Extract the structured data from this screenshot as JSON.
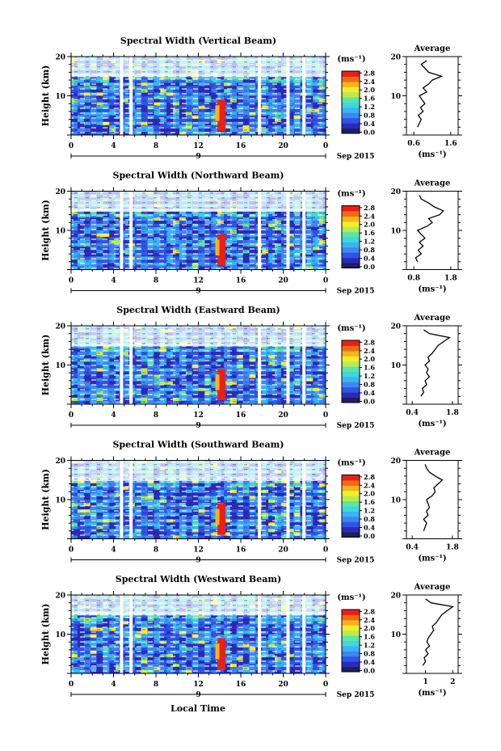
{
  "figure": {
    "xlabel": "Local Time",
    "date_label": "Sep 2015",
    "date_day": "9",
    "avg_title": "Average",
    "unit_label": "(ms⁻¹)",
    "ylabel": "Height (km)"
  },
  "colormap": [
    "#1e1f5e",
    "#2b2bb8",
    "#2f55e6",
    "#3f86f0",
    "#3ab4f2",
    "#3fd6e0",
    "#5fe3a8",
    "#b6ec4e",
    "#f4ec2c",
    "#f6b41c",
    "#f36a12",
    "#e8201a"
  ],
  "chart_data": [
    {
      "type": "heatmap",
      "title": "Spectral Width (Vertical Beam)",
      "x_ticks": [
        "0",
        "4",
        "8",
        "12",
        "16",
        "20",
        "0"
      ],
      "xlim": [
        0,
        24
      ],
      "y_ticks": [
        "20",
        "10"
      ],
      "ylim": [
        0,
        20
      ],
      "colorbar_ticks": [
        "2.8",
        "2.4",
        "2.0",
        "1.6",
        "1.2",
        "0.8",
        "0.4",
        "0.0"
      ],
      "colorbar_range": [
        0,
        2.8
      ],
      "average_profile": {
        "x_ticks": [
          "0.6",
          "1.6"
        ],
        "xlim": [
          0.4,
          1.8
        ],
        "y_ticks": [
          "20",
          "10"
        ],
        "ylim": [
          0,
          20
        ],
        "height_km": [
          2,
          3,
          4,
          5,
          6,
          7,
          8,
          9,
          10,
          11,
          12,
          13,
          14,
          15,
          16,
          17,
          18,
          19
        ],
        "width_ms": [
          0.7,
          0.75,
          0.8,
          0.72,
          0.85,
          0.78,
          0.9,
          0.82,
          0.75,
          0.95,
          0.85,
          1.0,
          1.1,
          1.35,
          1.0,
          0.9,
          0.8,
          0.95
        ]
      }
    },
    {
      "type": "heatmap",
      "title": "Spectral Width (Northward Beam)",
      "x_ticks": [
        "0",
        "4",
        "8",
        "12",
        "16",
        "20",
        "0"
      ],
      "xlim": [
        0,
        24
      ],
      "y_ticks": [
        "20",
        "10"
      ],
      "ylim": [
        0,
        20
      ],
      "colorbar_ticks": [
        "2.8",
        "2.4",
        "2.0",
        "1.6",
        "1.2",
        "0.8",
        "0.4",
        "0.0"
      ],
      "colorbar_range": [
        0,
        2.8
      ],
      "average_profile": {
        "x_ticks": [
          "0.8",
          "1.8"
        ],
        "xlim": [
          0.6,
          2.0
        ],
        "y_ticks": [
          "20",
          "10"
        ],
        "ylim": [
          0,
          20
        ],
        "height_km": [
          2,
          3,
          4,
          5,
          6,
          7,
          8,
          9,
          10,
          11,
          12,
          13,
          14,
          15,
          16,
          17,
          18,
          19
        ],
        "width_ms": [
          0.9,
          0.85,
          1.0,
          0.92,
          1.05,
          0.95,
          1.1,
          1.0,
          0.9,
          1.15,
          1.3,
          1.2,
          1.5,
          1.6,
          1.35,
          1.2,
          1.0,
          0.95
        ]
      }
    },
    {
      "type": "heatmap",
      "title": "Spectral Width (Eastward Beam)",
      "x_ticks": [
        "0",
        "4",
        "8",
        "12",
        "16",
        "20",
        "0"
      ],
      "xlim": [
        0,
        24
      ],
      "y_ticks": [
        "20",
        "10"
      ],
      "ylim": [
        0,
        20
      ],
      "colorbar_ticks": [
        "2.8",
        "2.4",
        "2.0",
        "1.6",
        "1.2",
        "0.8",
        "0.4",
        "0.0"
      ],
      "colorbar_range": [
        0,
        2.8
      ],
      "average_profile": {
        "x_ticks": [
          "0.4",
          "1.8"
        ],
        "xlim": [
          0.2,
          2.0
        ],
        "y_ticks": [
          "20",
          "10"
        ],
        "ylim": [
          0,
          20
        ],
        "height_km": [
          2,
          3,
          4,
          5,
          6,
          7,
          8,
          9,
          10,
          11,
          12,
          13,
          14,
          15,
          16,
          17,
          18,
          19
        ],
        "width_ms": [
          0.7,
          0.8,
          0.75,
          0.9,
          0.85,
          1.0,
          0.9,
          0.95,
          0.85,
          1.0,
          0.95,
          1.1,
          1.2,
          1.3,
          1.5,
          1.7,
          1.0,
          0.8
        ]
      }
    },
    {
      "type": "heatmap",
      "title": "Spectral Width (Southward Beam)",
      "x_ticks": [
        "0",
        "4",
        "8",
        "12",
        "16",
        "20",
        "0"
      ],
      "xlim": [
        0,
        24
      ],
      "y_ticks": [
        "20",
        "10"
      ],
      "ylim": [
        0,
        20
      ],
      "colorbar_ticks": [
        "2.8",
        "2.4",
        "2.0",
        "1.6",
        "1.2",
        "0.8",
        "0.4",
        "0.0"
      ],
      "colorbar_range": [
        0,
        2.8
      ],
      "average_profile": {
        "x_ticks": [
          "0.4",
          "1.8"
        ],
        "xlim": [
          0.2,
          2.0
        ],
        "y_ticks": [
          "20",
          "10"
        ],
        "ylim": [
          0,
          20
        ],
        "height_km": [
          2,
          3,
          4,
          5,
          6,
          7,
          8,
          9,
          10,
          11,
          12,
          13,
          14,
          15,
          16,
          17,
          18,
          19
        ],
        "width_ms": [
          0.8,
          0.85,
          0.9,
          0.8,
          0.95,
          0.9,
          1.0,
          0.95,
          0.9,
          1.1,
          1.2,
          1.15,
          1.3,
          1.45,
          1.2,
          1.0,
          0.9,
          0.85
        ]
      }
    },
    {
      "type": "heatmap",
      "title": "Spectral Width (Westward Beam)",
      "x_ticks": [
        "0",
        "4",
        "8",
        "12",
        "16",
        "20",
        "0"
      ],
      "xlim": [
        0,
        24
      ],
      "y_ticks": [
        "20",
        "10"
      ],
      "ylim": [
        0,
        20
      ],
      "colorbar_ticks": [
        "2.8",
        "2.4",
        "2.0",
        "1.6",
        "1.2",
        "0.8",
        "0.4",
        "0.0"
      ],
      "colorbar_range": [
        0,
        2.8
      ],
      "average_profile": {
        "x_ticks": [
          "1",
          "2"
        ],
        "xlim": [
          0.3,
          2.2
        ],
        "y_ticks": [
          "20",
          "10"
        ],
        "ylim": [
          0,
          20
        ],
        "height_km": [
          2,
          3,
          4,
          5,
          6,
          7,
          8,
          9,
          10,
          11,
          12,
          13,
          14,
          15,
          16,
          17,
          18,
          19
        ],
        "width_ms": [
          0.9,
          1.0,
          0.95,
          1.1,
          1.0,
          1.15,
          1.05,
          1.1,
          1.2,
          1.3,
          1.25,
          1.4,
          1.5,
          1.6,
          1.8,
          2.0,
          1.2,
          1.0
        ]
      }
    }
  ]
}
